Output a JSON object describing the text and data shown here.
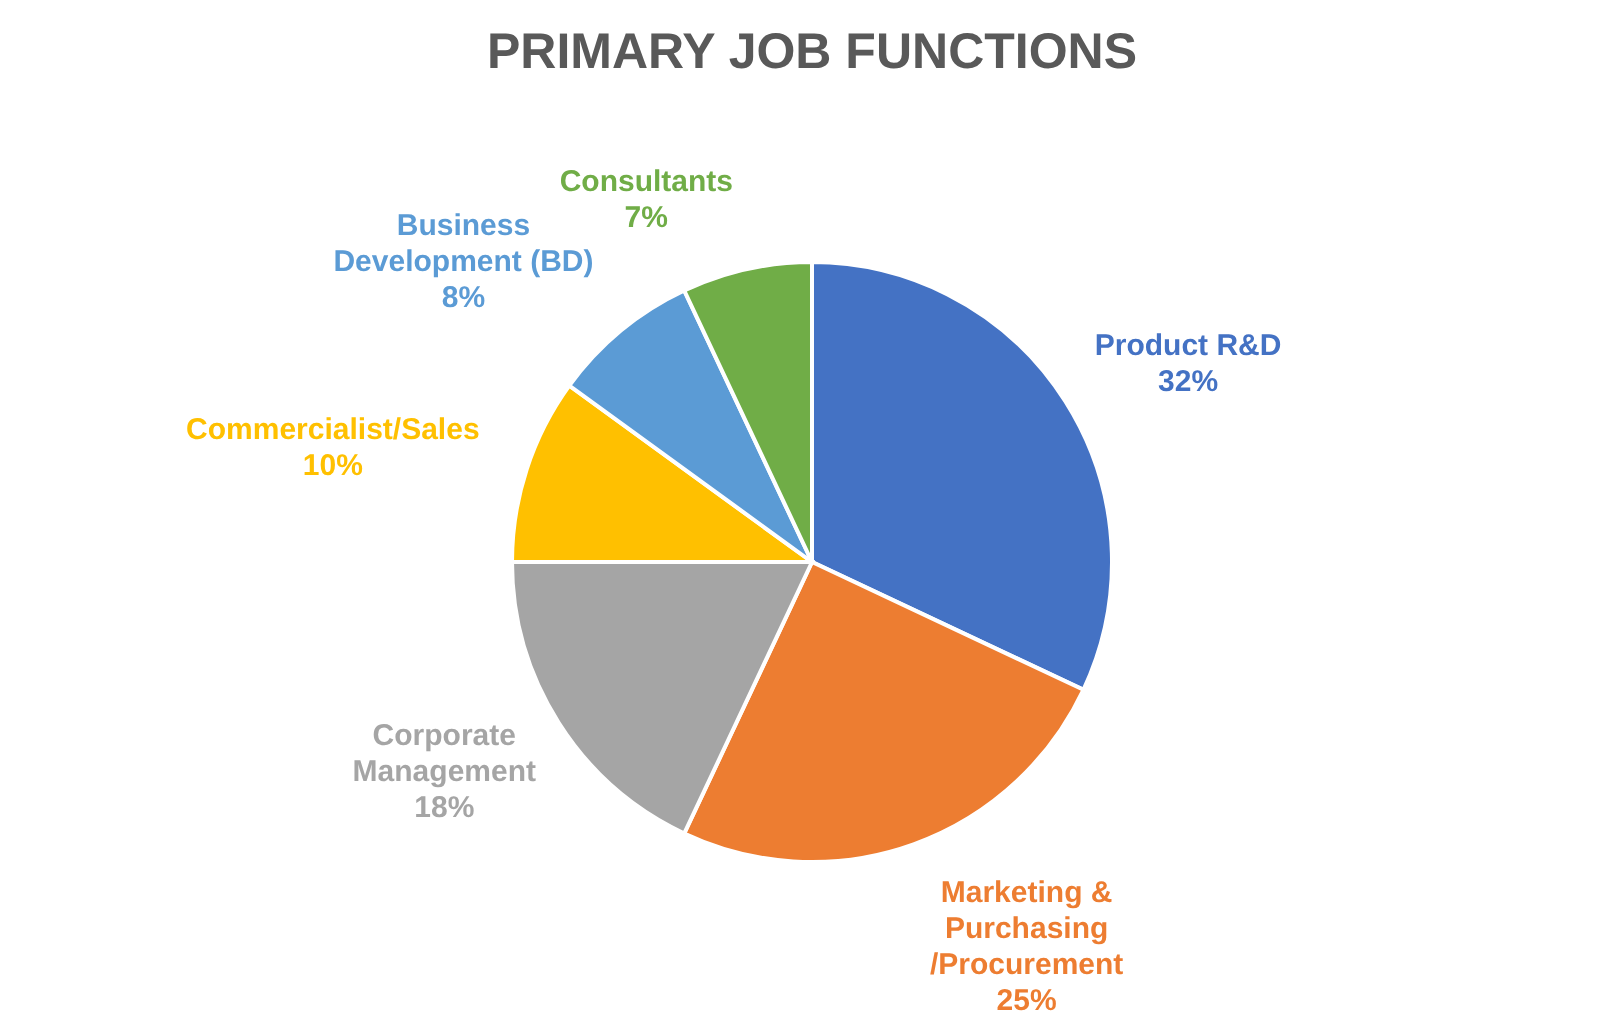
{
  "chart_data": {
    "type": "pie",
    "title": "PRIMARY JOB FUNCTIONS",
    "categories": [
      "Product R&D",
      "Marketing & Purchasing /Procurement",
      "Corporate Management",
      "Commercialist/Sales",
      "Business Development (BD)",
      "Consultants"
    ],
    "values": [
      32,
      25,
      18,
      10,
      8,
      7
    ],
    "colors": [
      "#4472c4",
      "#ed7d31",
      "#a5a5a5",
      "#ffc000",
      "#5b9bd5",
      "#70ad47"
    ],
    "value_labels": [
      "32%",
      "25%",
      "18%",
      "10%",
      "8%",
      "7%"
    ]
  }
}
